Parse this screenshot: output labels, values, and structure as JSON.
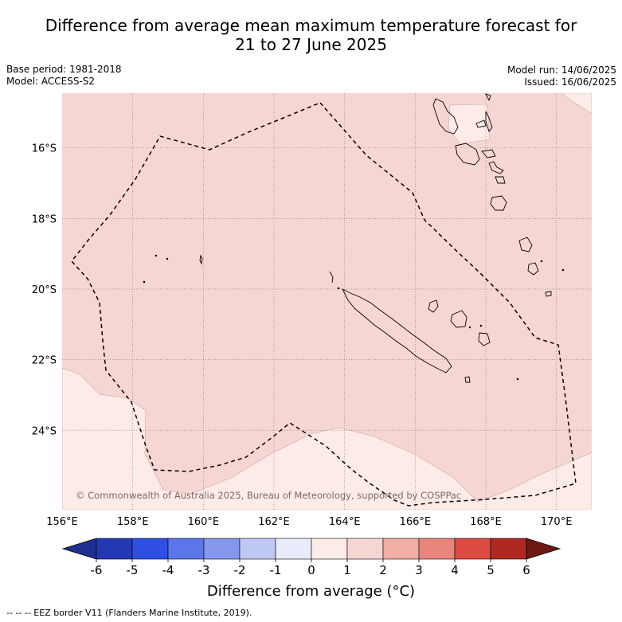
{
  "title": {
    "line1": "Difference from average mean maximum temperature forecast for",
    "line2": "21 to 27 June 2025"
  },
  "meta": {
    "base_period": "Base period: 1981-2018",
    "model": "Model: ACCESS-S2",
    "model_run": "Model run: 14/06/2025",
    "issued": "Issued: 16/06/2025"
  },
  "map": {
    "lon_range": [
      156,
      171
    ],
    "lat_range": [
      -26.25,
      -14.45
    ],
    "lon_ticks": [
      "156°E",
      "158°E",
      "160°E",
      "162°E",
      "164°E",
      "166°E",
      "168°E",
      "170°E"
    ],
    "lat_ticks": [
      "16°S",
      "18°S",
      "20°S",
      "22°S",
      "24°S"
    ],
    "grid": true,
    "copyright": "© Commonwealth of Australia 2025, Bureau of Meteorology, supported by COSPPac",
    "fill_colors": {
      "band_0_1": "#fdebe8",
      "band_1_2": "#f6d6d3"
    }
  },
  "colorbar": {
    "ticks": [
      "-6",
      "-5",
      "-4",
      "-3",
      "-2",
      "-1",
      "0",
      "1",
      "2",
      "3",
      "4",
      "5",
      "6"
    ],
    "colors": [
      "#1f2f90",
      "#2339b4",
      "#2f4fe0",
      "#5a76e8",
      "#8497ec",
      "#bfc7f3",
      "#e8ebfa",
      "#fdebe8",
      "#f6d6d3",
      "#f0aea7",
      "#e8867c",
      "#dc4b40",
      "#b02822",
      "#6e1812"
    ],
    "label": "Difference from average (°C)"
  },
  "legend": {
    "eez": "-- -- -- EEZ border V11 (Flanders Marine Institute, 2019)."
  }
}
